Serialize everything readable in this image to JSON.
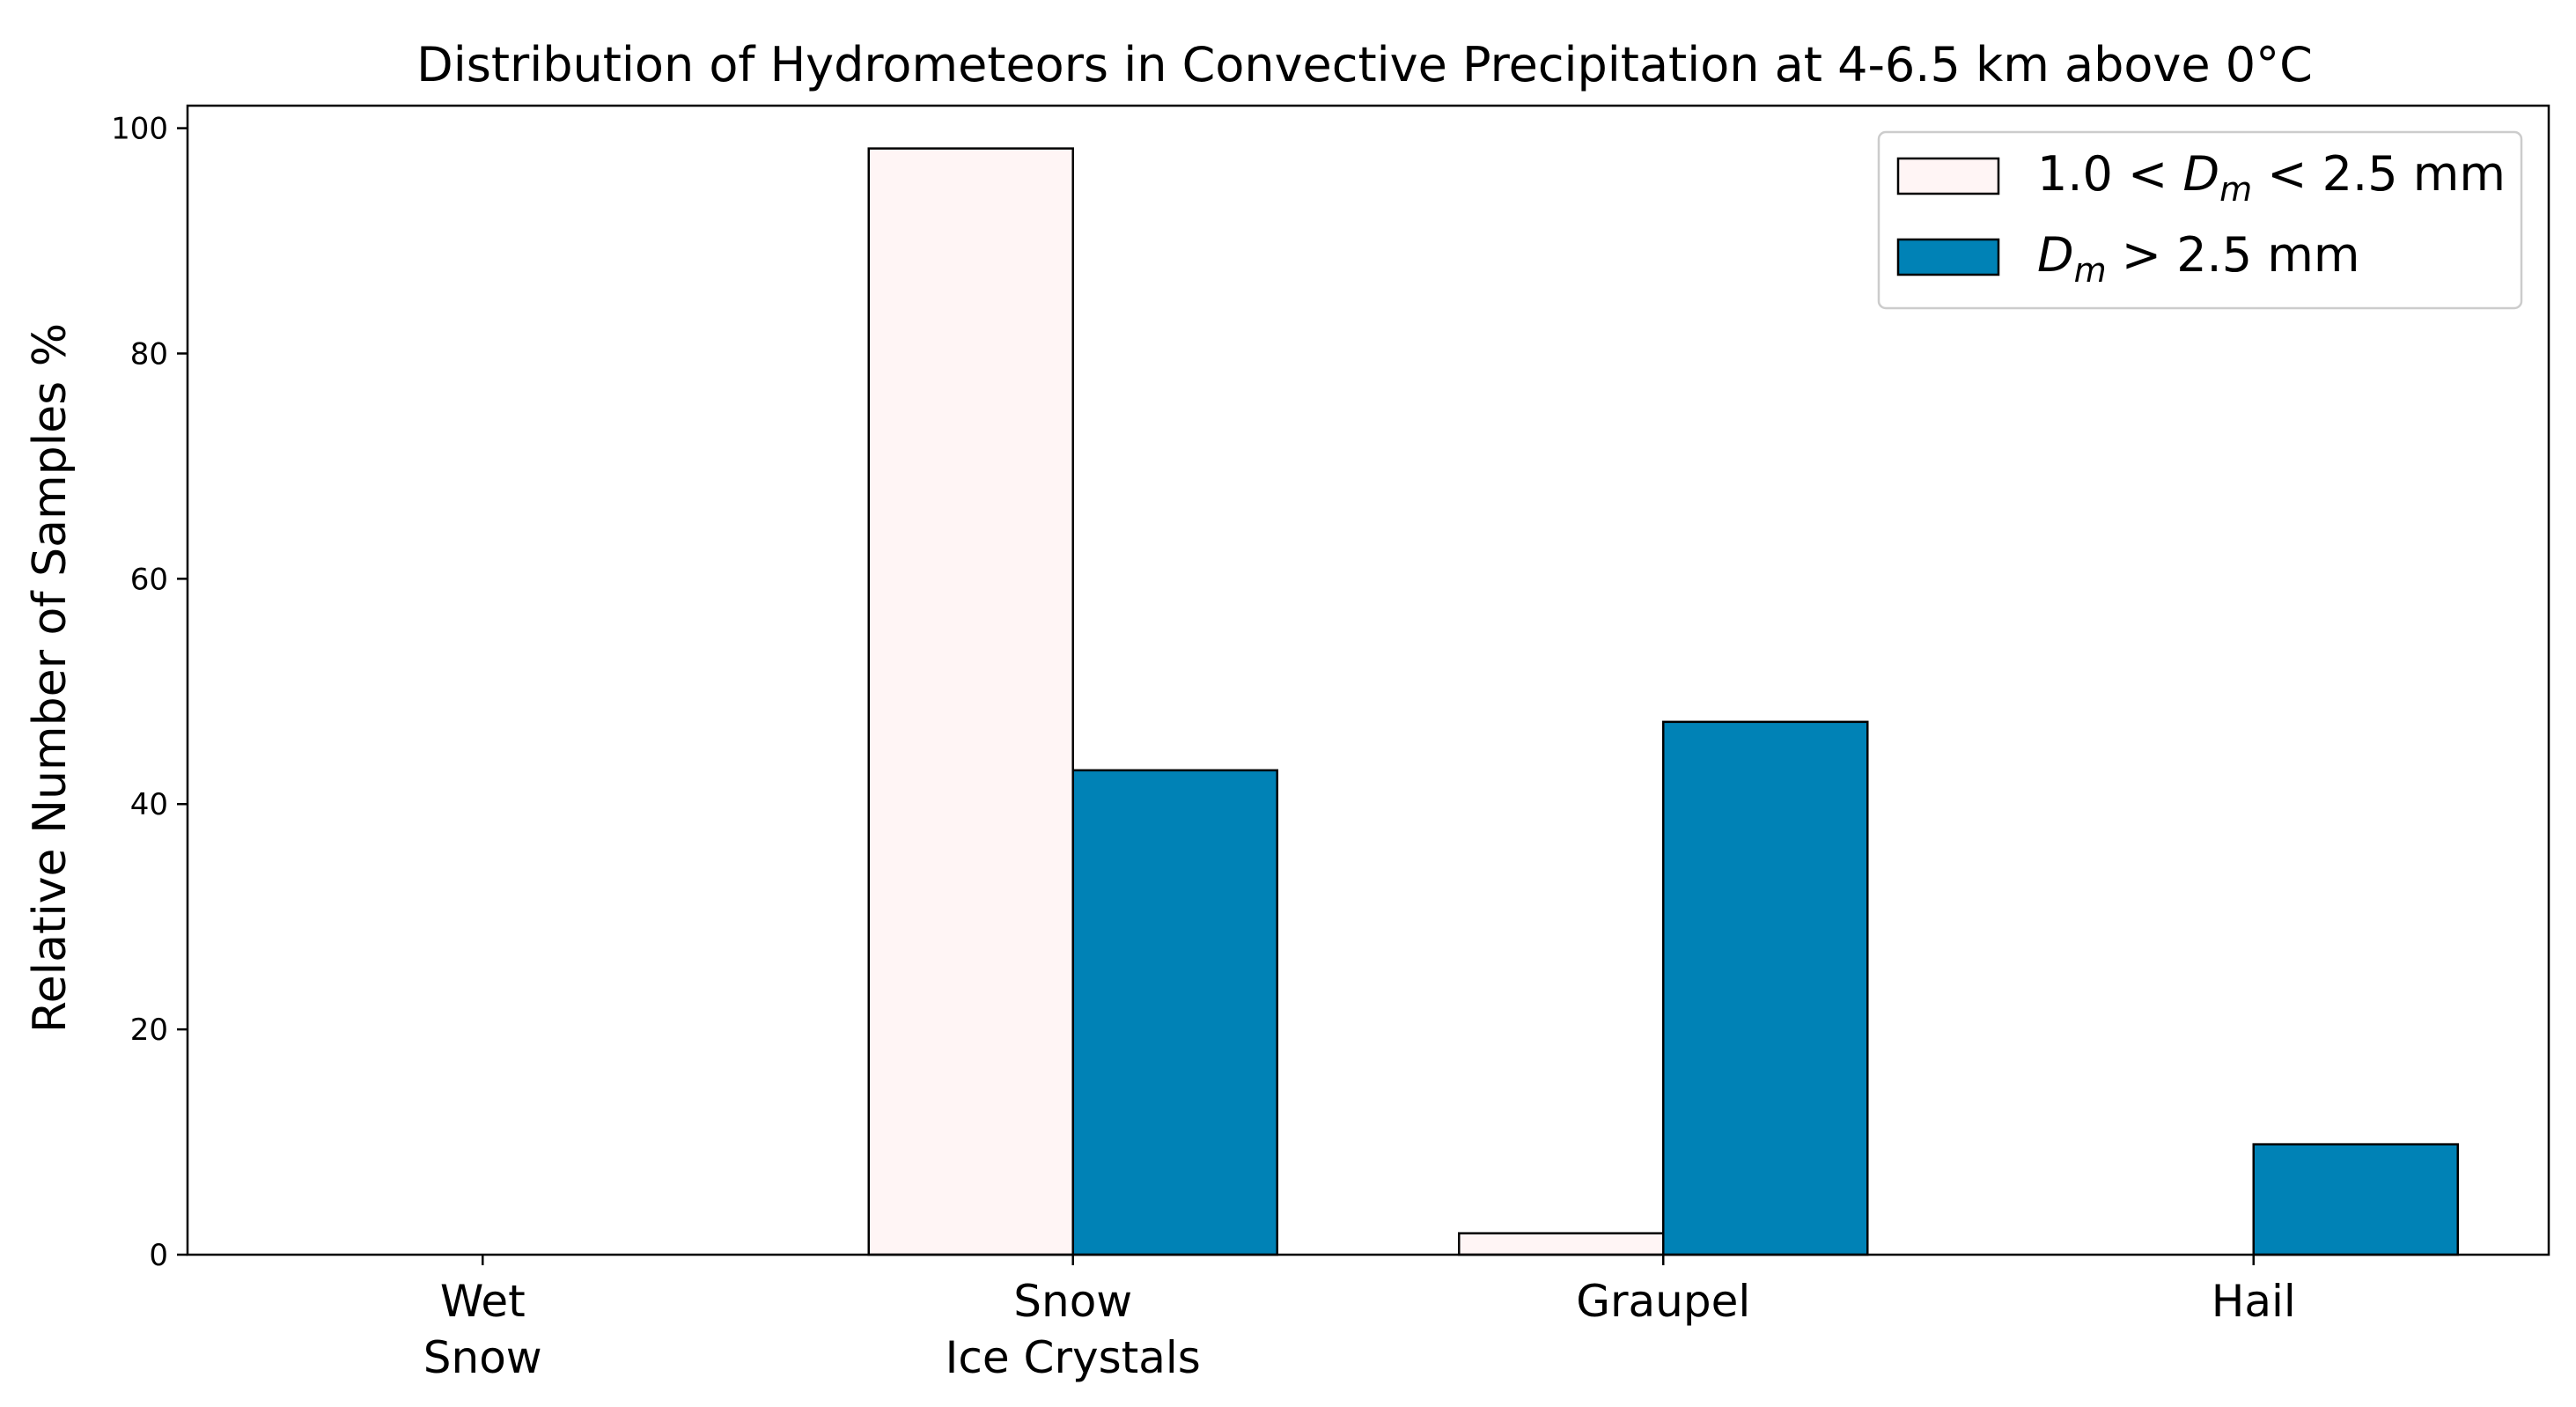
{
  "chart_data": {
    "type": "bar",
    "title": "Distribution of Hydrometeors in Convective Precipitation at 4-6.5 km above 0°C",
    "ylabel": "Relative Number of Samples %",
    "xlabel": "",
    "ylim": [
      0,
      102
    ],
    "yticks": [
      0,
      20,
      40,
      60,
      80,
      100
    ],
    "categories": [
      [
        "Wet",
        "Snow"
      ],
      [
        "Snow",
        "Ice Crystals"
      ],
      [
        "Graupel"
      ],
      [
        "Hail"
      ]
    ],
    "series": [
      {
        "name": "1.0 < Dm < 2.5 mm",
        "legend_parts": {
          "pre": "1.0 < ",
          "var": "D",
          "sub": "m",
          "post": " < 2.5 mm"
        },
        "color": "#fff5f5",
        "values": [
          0,
          98.2,
          1.9,
          0
        ]
      },
      {
        "name": "Dm > 2.5 mm",
        "legend_parts": {
          "pre": "",
          "var": "D",
          "sub": "m",
          "post": " > 2.5 mm"
        },
        "color": "#0082b6",
        "values": [
          0,
          43.0,
          47.3,
          9.8
        ]
      }
    ],
    "grid": false,
    "legend_position": "upper right"
  }
}
